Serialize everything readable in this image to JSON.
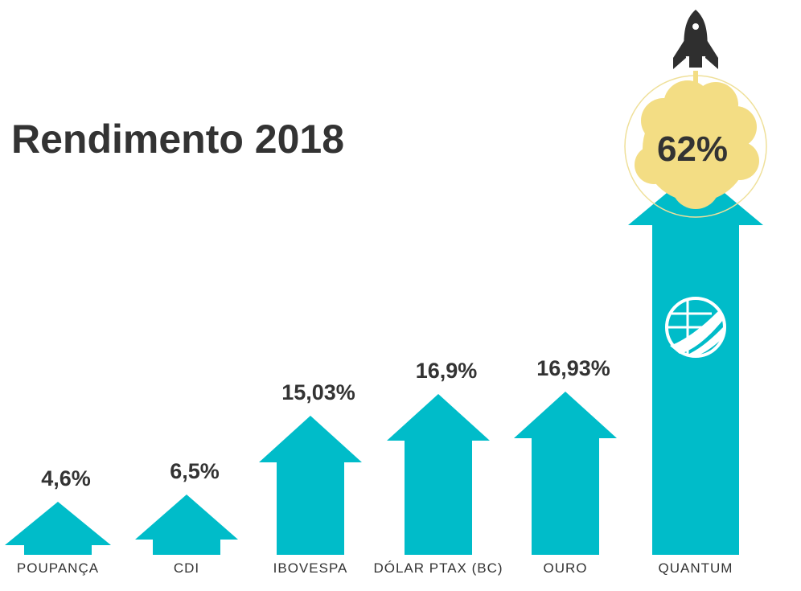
{
  "chart_data": {
    "type": "bar",
    "title": "Rendimento 2018",
    "categories": [
      "POUPANÇA",
      "CDI",
      "IBOVESPA",
      "DÓLAR PTAX (BC)",
      "OURO",
      "QUANTUM"
    ],
    "values": [
      4.6,
      6.5,
      15.03,
      16.9,
      16.93,
      62
    ],
    "value_labels": [
      "4,6%",
      "6,5%",
      "15,03%",
      "16,9%",
      "16,93%",
      "62%"
    ],
    "xlabel": "",
    "ylabel": "",
    "grid": false,
    "legend": "none"
  },
  "colors": {
    "arrow": "#00bcc9",
    "text": "#333333",
    "bubble": "#f3dd84",
    "bubble_ring": "#efe09a",
    "rocket": "#2f2f2f"
  },
  "icons": {
    "rocket": "rocket-icon",
    "logo": "globe-logo-icon"
  }
}
